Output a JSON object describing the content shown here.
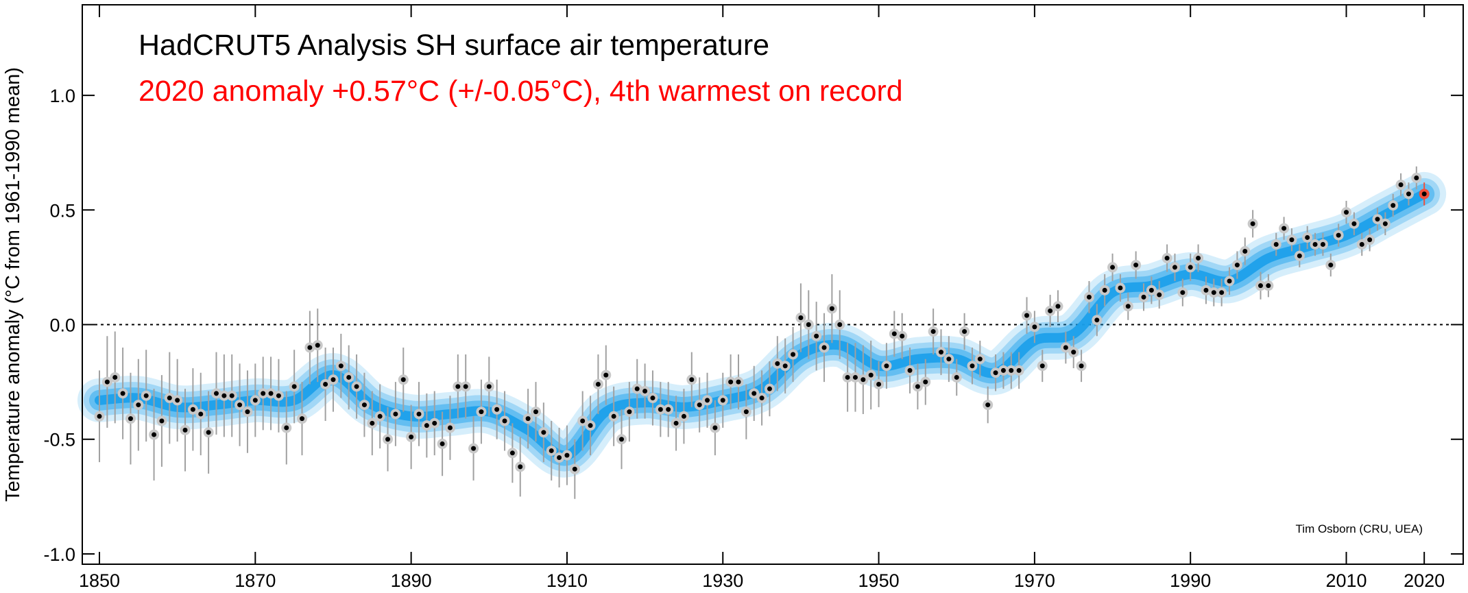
{
  "chart_data": {
    "type": "scatter",
    "title": "HadCRUT5 Analysis SH surface air temperature",
    "subtitle": "2020 anomaly +0.57°C (+/-0.05°C), 4th warmest on record",
    "ylabel": "Temperature anomaly (°C from 1961-1990 mean)",
    "credit": "Tim Osborn (CRU, UEA)",
    "xlim": [
      1847.8,
      2025
    ],
    "ylim": [
      -1.045,
      1.395
    ],
    "xticks": [
      1850,
      1870,
      1890,
      1910,
      1930,
      1950,
      1970,
      1990,
      2010,
      2020
    ],
    "yticks": [
      {
        "value": -1.0,
        "label": "-1.0"
      },
      {
        "value": -0.5,
        "label": "-0.5"
      },
      {
        "value": 0.0,
        "label": "0.0"
      },
      {
        "value": 0.5,
        "label": "0.5"
      },
      {
        "value": 1.0,
        "label": "1.0"
      }
    ],
    "reference_line": 0,
    "point_color": "#000000",
    "halo_color": "#c8c8c8",
    "error_color": "#a0a0a0",
    "highlight_color": "#f0503c",
    "smooth_color": "#1a9fea",
    "x": [
      1850,
      1851,
      1852,
      1853,
      1854,
      1855,
      1856,
      1857,
      1858,
      1859,
      1860,
      1861,
      1862,
      1863,
      1864,
      1865,
      1866,
      1867,
      1868,
      1869,
      1870,
      1871,
      1872,
      1873,
      1874,
      1875,
      1876,
      1877,
      1878,
      1879,
      1880,
      1881,
      1882,
      1883,
      1884,
      1885,
      1886,
      1887,
      1888,
      1889,
      1890,
      1891,
      1892,
      1893,
      1894,
      1895,
      1896,
      1897,
      1898,
      1899,
      1900,
      1901,
      1902,
      1903,
      1904,
      1905,
      1906,
      1907,
      1908,
      1909,
      1910,
      1911,
      1912,
      1913,
      1914,
      1915,
      1916,
      1917,
      1918,
      1919,
      1920,
      1921,
      1922,
      1923,
      1924,
      1925,
      1926,
      1927,
      1928,
      1929,
      1930,
      1931,
      1932,
      1933,
      1934,
      1935,
      1936,
      1937,
      1938,
      1939,
      1940,
      1941,
      1942,
      1943,
      1944,
      1945,
      1946,
      1947,
      1948,
      1949,
      1950,
      1951,
      1952,
      1953,
      1954,
      1955,
      1956,
      1957,
      1958,
      1959,
      1960,
      1961,
      1962,
      1963,
      1964,
      1965,
      1966,
      1967,
      1968,
      1969,
      1970,
      1971,
      1972,
      1973,
      1974,
      1975,
      1976,
      1977,
      1978,
      1979,
      1980,
      1981,
      1982,
      1983,
      1984,
      1985,
      1986,
      1987,
      1988,
      1989,
      1990,
      1991,
      1992,
      1993,
      1994,
      1995,
      1996,
      1997,
      1998,
      1999,
      2000,
      2001,
      2002,
      2003,
      2004,
      2005,
      2006,
      2007,
      2008,
      2009,
      2010,
      2011,
      2012,
      2013,
      2014,
      2015,
      2016,
      2017,
      2018,
      2019,
      2020
    ],
    "values": [
      -0.4,
      -0.25,
      -0.23,
      -0.3,
      -0.41,
      -0.35,
      -0.31,
      -0.48,
      -0.42,
      -0.32,
      -0.33,
      -0.46,
      -0.37,
      -0.39,
      -0.47,
      -0.3,
      -0.31,
      -0.31,
      -0.35,
      -0.38,
      -0.33,
      -0.3,
      -0.3,
      -0.31,
      -0.45,
      -0.27,
      -0.41,
      -0.1,
      -0.09,
      -0.26,
      -0.24,
      -0.18,
      -0.23,
      -0.27,
      -0.35,
      -0.43,
      -0.4,
      -0.5,
      -0.39,
      -0.24,
      -0.49,
      -0.39,
      -0.44,
      -0.43,
      -0.52,
      -0.45,
      -0.27,
      -0.27,
      -0.54,
      -0.38,
      -0.27,
      -0.37,
      -0.42,
      -0.56,
      -0.62,
      -0.41,
      -0.38,
      -0.47,
      -0.55,
      -0.58,
      -0.57,
      -0.63,
      -0.42,
      -0.44,
      -0.26,
      -0.22,
      -0.4,
      -0.5,
      -0.38,
      -0.28,
      -0.29,
      -0.32,
      -0.37,
      -0.37,
      -0.43,
      -0.4,
      -0.24,
      -0.35,
      -0.33,
      -0.45,
      -0.33,
      -0.25,
      -0.25,
      -0.38,
      -0.3,
      -0.32,
      -0.28,
      -0.17,
      -0.18,
      -0.13,
      0.03,
      0.0,
      -0.05,
      -0.1,
      0.07,
      0.0,
      -0.23,
      -0.23,
      -0.24,
      -0.22,
      -0.26,
      -0.18,
      -0.04,
      -0.05,
      -0.2,
      -0.27,
      -0.25,
      -0.03,
      -0.12,
      -0.15,
      -0.23,
      -0.03,
      -0.18,
      -0.15,
      -0.35,
      -0.21,
      -0.2,
      -0.2,
      -0.2,
      0.04,
      -0.01,
      -0.18,
      0.06,
      0.08,
      -0.1,
      -0.12,
      -0.18,
      0.12,
      0.02,
      0.15,
      0.25,
      0.16,
      0.08,
      0.26,
      0.12,
      0.15,
      0.13,
      0.29,
      0.25,
      0.14,
      0.25,
      0.29,
      0.15,
      0.14,
      0.14,
      0.19,
      0.26,
      0.32,
      0.44,
      0.17,
      0.17,
      0.35,
      0.42,
      0.37,
      0.3,
      0.38,
      0.35,
      0.35,
      0.26,
      0.39,
      0.49,
      0.44,
      0.35,
      0.37,
      0.46,
      0.44,
      0.52,
      0.61,
      0.57,
      0.64,
      0.57
    ],
    "errors": [
      0.2,
      0.2,
      0.2,
      0.2,
      0.2,
      0.2,
      0.2,
      0.2,
      0.2,
      0.2,
      0.18,
      0.18,
      0.18,
      0.18,
      0.18,
      0.18,
      0.18,
      0.18,
      0.18,
      0.18,
      0.16,
      0.16,
      0.16,
      0.16,
      0.16,
      0.16,
      0.16,
      0.16,
      0.16,
      0.16,
      0.14,
      0.14,
      0.14,
      0.14,
      0.14,
      0.14,
      0.14,
      0.14,
      0.14,
      0.14,
      0.14,
      0.14,
      0.14,
      0.14,
      0.14,
      0.14,
      0.14,
      0.14,
      0.14,
      0.14,
      0.13,
      0.13,
      0.13,
      0.13,
      0.13,
      0.13,
      0.13,
      0.13,
      0.13,
      0.13,
      0.13,
      0.13,
      0.13,
      0.13,
      0.13,
      0.13,
      0.13,
      0.13,
      0.13,
      0.13,
      0.12,
      0.12,
      0.12,
      0.12,
      0.12,
      0.12,
      0.12,
      0.12,
      0.12,
      0.12,
      0.12,
      0.12,
      0.12,
      0.12,
      0.12,
      0.12,
      0.12,
      0.12,
      0.12,
      0.12,
      0.15,
      0.15,
      0.15,
      0.15,
      0.15,
      0.15,
      0.15,
      0.15,
      0.15,
      0.15,
      0.1,
      0.1,
      0.1,
      0.1,
      0.1,
      0.1,
      0.1,
      0.1,
      0.1,
      0.1,
      0.08,
      0.08,
      0.08,
      0.08,
      0.08,
      0.08,
      0.08,
      0.08,
      0.08,
      0.08,
      0.07,
      0.07,
      0.07,
      0.07,
      0.07,
      0.07,
      0.07,
      0.07,
      0.07,
      0.07,
      0.06,
      0.06,
      0.06,
      0.06,
      0.06,
      0.06,
      0.06,
      0.06,
      0.06,
      0.06,
      0.06,
      0.06,
      0.06,
      0.06,
      0.06,
      0.06,
      0.06,
      0.06,
      0.06,
      0.06,
      0.05,
      0.05,
      0.05,
      0.05,
      0.05,
      0.05,
      0.05,
      0.05,
      0.05,
      0.05,
      0.05,
      0.05,
      0.05,
      0.05,
      0.05,
      0.05,
      0.05,
      0.05,
      0.05,
      0.05,
      0.05
    ],
    "smooth_x": [
      1850,
      1855,
      1860,
      1865,
      1870,
      1875,
      1880,
      1885,
      1890,
      1895,
      1900,
      1905,
      1910,
      1915,
      1920,
      1925,
      1930,
      1935,
      1940,
      1945,
      1950,
      1955,
      1960,
      1965,
      1970,
      1975,
      1980,
      1985,
      1990,
      1995,
      2000,
      2005,
      2010,
      2015,
      2020
    ],
    "smooth_values": [
      -0.33,
      -0.32,
      -0.36,
      -0.35,
      -0.33,
      -0.33,
      -0.22,
      -0.35,
      -0.4,
      -0.39,
      -0.38,
      -0.46,
      -0.57,
      -0.38,
      -0.34,
      -0.36,
      -0.33,
      -0.28,
      -0.13,
      -0.09,
      -0.18,
      -0.15,
      -0.15,
      -0.21,
      -0.07,
      -0.04,
      0.14,
      0.17,
      0.22,
      0.19,
      0.29,
      0.34,
      0.39,
      0.48,
      0.57
    ]
  }
}
